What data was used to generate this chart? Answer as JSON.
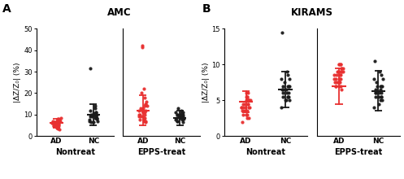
{
  "panel_A_title": "AMC",
  "panel_B_title": "KIRAMS",
  "ylabel": "|ΔZ/Z₀| (%)",
  "red_color": "#E83030",
  "black_color": "#1A1A1A",
  "AMC_Nontreat_AD": [
    7.2,
    6.0,
    8.1,
    5.5,
    7.0,
    6.5,
    5.0,
    4.5,
    6.0,
    7.0,
    5.5,
    8.5,
    6.0,
    5.0,
    7.5,
    4.0,
    6.0,
    5.5,
    7.0,
    8.0,
    5.0,
    4.5,
    6.5,
    3.5,
    5.0,
    6.0,
    7.0,
    4.0,
    5.5,
    6.5,
    3.0,
    4.0
  ],
  "AMC_Nontreat_NC": [
    9.5,
    10.0,
    8.0,
    11.0,
    7.5,
    13.0,
    9.0,
    10.5,
    8.5,
    12.0,
    6.5,
    14.0,
    9.0,
    8.0,
    10.0,
    7.0,
    31.5,
    11.0,
    9.5,
    10.0,
    8.5,
    7.0,
    6.5,
    9.0
  ],
  "AMC_Nontreat_AD_mean": 6.0,
  "AMC_Nontreat_AD_sd": 2.0,
  "AMC_Nontreat_NC_mean": 10.0,
  "AMC_Nontreat_NC_sd": 5.0,
  "AMC_EPPS_AD": [
    12.0,
    10.0,
    8.0,
    15.0,
    11.0,
    9.0,
    13.0,
    7.0,
    10.0,
    12.0,
    8.5,
    14.0,
    9.0,
    11.0,
    6.5,
    22.0,
    18.0,
    20.0,
    16.0,
    14.0,
    9.0,
    7.5,
    12.0,
    10.0,
    41.5,
    42.0,
    8.0,
    13.0,
    11.0,
    7.0,
    15.0,
    12.0
  ],
  "AMC_EPPS_NC": [
    10.0,
    9.0,
    8.0,
    11.0,
    7.5,
    12.0,
    9.5,
    8.5,
    10.5,
    7.0,
    13.0,
    8.0,
    9.0,
    10.0,
    7.5,
    11.0,
    8.5,
    9.5,
    10.0,
    7.0,
    6.5,
    8.0,
    9.0,
    10.0
  ],
  "AMC_EPPS_AD_mean": 12.0,
  "AMC_EPPS_AD_sd": 7.0,
  "AMC_EPPS_NC_mean": 8.5,
  "AMC_EPPS_NC_sd": 3.5,
  "KIRAMS_Nontreat_AD": [
    5.0,
    4.0,
    3.5,
    4.5,
    5.5,
    3.0,
    4.0,
    5.0,
    4.5,
    3.5,
    6.0,
    5.0,
    4.0,
    3.0,
    2.5,
    5.5,
    4.5,
    3.5,
    4.0,
    5.0,
    3.0,
    2.0,
    4.5,
    5.0,
    3.5,
    4.0,
    5.5,
    6.0,
    3.0,
    2.5,
    4.0,
    5.0
  ],
  "KIRAMS_Nontreat_NC": [
    6.5,
    5.0,
    7.0,
    5.5,
    8.0,
    6.0,
    7.5,
    5.0,
    9.0,
    6.5,
    7.0,
    5.5,
    8.5,
    6.0,
    5.5,
    4.0,
    14.5,
    7.0,
    6.0,
    5.5,
    7.0,
    8.0,
    5.0,
    6.5
  ],
  "KIRAMS_Nontreat_AD_mean": 4.8,
  "KIRAMS_Nontreat_AD_sd": 1.5,
  "KIRAMS_Nontreat_NC_mean": 6.5,
  "KIRAMS_Nontreat_NC_sd": 2.5,
  "KIRAMS_EPPS_AD": [
    9.5,
    8.0,
    7.5,
    9.0,
    10.0,
    8.5,
    7.0,
    9.5,
    8.0,
    7.5,
    10.0,
    9.0,
    8.5,
    7.0,
    6.5,
    9.0,
    8.0,
    7.5,
    9.5,
    10.0,
    8.0,
    7.0,
    9.0,
    8.5,
    7.5,
    9.0,
    8.0,
    10.0,
    7.0,
    8.5,
    9.0,
    7.5
  ],
  "KIRAMS_EPPS_NC": [
    6.0,
    5.0,
    7.0,
    5.5,
    8.0,
    6.5,
    7.0,
    5.5,
    9.0,
    6.0,
    7.5,
    5.0,
    8.5,
    6.0,
    5.5,
    4.0,
    10.5,
    7.0,
    6.0,
    5.5,
    7.0,
    8.0,
    4.5,
    6.5
  ],
  "KIRAMS_EPPS_AD_mean": 7.0,
  "KIRAMS_EPPS_AD_sd": 2.5,
  "KIRAMS_EPPS_NC_mean": 6.3,
  "KIRAMS_EPPS_NC_sd": 2.8,
  "AMC_ylim": [
    0,
    50
  ],
  "AMC_yticks": [
    0,
    10,
    20,
    30,
    40,
    50
  ],
  "KIRAMS_ylim": [
    0,
    15
  ],
  "KIRAMS_yticks": [
    0,
    5,
    10,
    15
  ]
}
